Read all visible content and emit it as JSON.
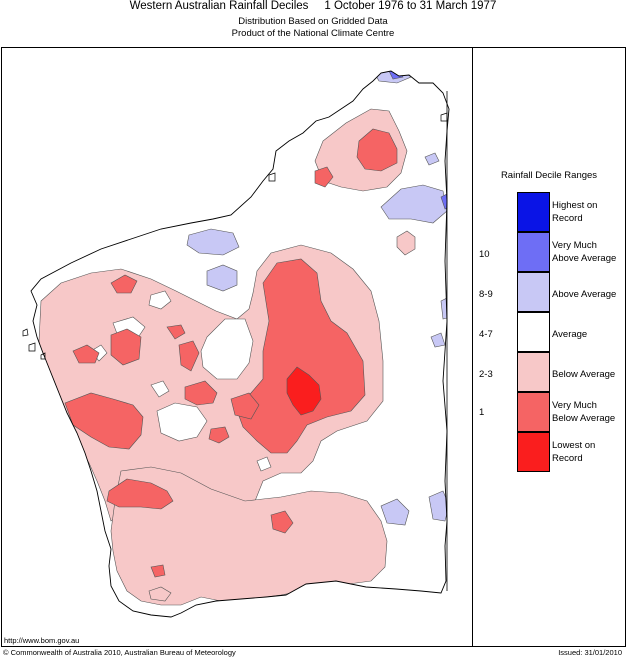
{
  "header": {
    "title": "Western Australian Rainfall Deciles     1 October 1976 to 31 March 1977",
    "subtitle1": "Distribution Based on Gridded Data",
    "subtitle2": "Product of the National Climate Centre"
  },
  "legend": {
    "title": "Rainfall Decile Ranges",
    "items": [
      {
        "label": "Highest on Record",
        "line1": "Highest on",
        "line2": "Record",
        "decile": "",
        "color": "#0a14e6"
      },
      {
        "label": "Very Much Above Average",
        "line1": "Very Much",
        "line2": "Above Average",
        "decile": "10",
        "color": "#6e6ef5"
      },
      {
        "label": "Above Average",
        "line1": "Above Average",
        "line2": "",
        "decile": "8-9",
        "color": "#c8c8f5"
      },
      {
        "label": "Average",
        "line1": "Average",
        "line2": "",
        "decile": "4-7",
        "color": "#ffffff"
      },
      {
        "label": "Below Average",
        "line1": "Below Average",
        "line2": "",
        "decile": "2-3",
        "color": "#f7c8c8"
      },
      {
        "label": "Very Much Below Average",
        "line1": "Very Much",
        "line2": "Below Average",
        "decile": "1",
        "color": "#f56464"
      },
      {
        "label": "Lowest on Record",
        "line1": "Lowest on",
        "line2": "Record",
        "decile": "",
        "color": "#fa1e1e"
      }
    ]
  },
  "footer": {
    "url": "http://www.bom.gov.au",
    "copyright": "© Commonwealth of Australia 2010, Australian Bureau of Meteorology",
    "issued": "Issued: 31/01/2010"
  }
}
